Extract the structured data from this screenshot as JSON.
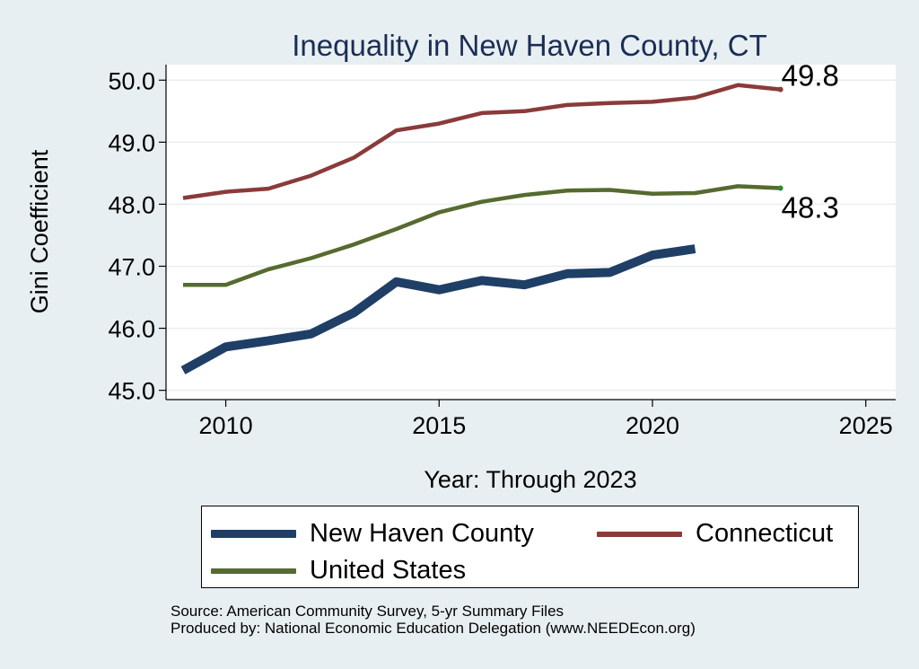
{
  "chart_data": {
    "type": "line",
    "title": "Inequality in New Haven County, CT",
    "xlabel": "Year: Through 2023",
    "ylabel": "Gini Coefficient",
    "xlim": [
      2008.6,
      2025.7
    ],
    "ylim": [
      44.85,
      50.25
    ],
    "x_ticks": [
      2010,
      2015,
      2020,
      2025
    ],
    "y_ticks": [
      45.0,
      46.0,
      47.0,
      48.0,
      49.0,
      50.0
    ],
    "y_tick_labels": [
      "45.0",
      "46.0",
      "47.0",
      "48.0",
      "49.0",
      "50.0"
    ],
    "grid": true,
    "series": [
      {
        "name": "Connecticut",
        "color": "#8b3a3a",
        "x": [
          2009,
          2010,
          2011,
          2012,
          2013,
          2014,
          2015,
          2016,
          2017,
          2018,
          2019,
          2020,
          2021,
          2022,
          2023
        ],
        "values": [
          48.1,
          48.2,
          48.25,
          48.46,
          48.75,
          49.19,
          49.3,
          49.47,
          49.5,
          49.6,
          49.63,
          49.65,
          49.72,
          49.92,
          49.85
        ],
        "end_label": "49.8"
      },
      {
        "name": "United States",
        "color": "#556b2f",
        "x": [
          2009,
          2010,
          2011,
          2012,
          2013,
          2014,
          2015,
          2016,
          2017,
          2018,
          2019,
          2020,
          2021,
          2022,
          2023
        ],
        "values": [
          46.7,
          46.7,
          46.95,
          47.13,
          47.35,
          47.6,
          47.87,
          48.04,
          48.15,
          48.22,
          48.23,
          48.17,
          48.18,
          48.29,
          48.26
        ],
        "end_label": "48.3"
      },
      {
        "name": "New Haven County",
        "color": "#1f3f66",
        "x": [
          2009,
          2010,
          2011,
          2012,
          2013,
          2014,
          2015,
          2016,
          2017,
          2018,
          2019,
          2020,
          2021
        ],
        "values": [
          45.32,
          45.7,
          45.8,
          45.91,
          46.25,
          46.75,
          46.62,
          46.77,
          46.7,
          46.88,
          46.9,
          47.18,
          47.28
        ]
      }
    ]
  },
  "legend": {
    "items": [
      {
        "label": "New Haven County",
        "color": "#1f3f66"
      },
      {
        "label": "Connecticut",
        "color": "#8b3a3a"
      },
      {
        "label": "United States",
        "color": "#556b2f"
      }
    ]
  },
  "footer": {
    "source": "Source: American Community Survey, 5-yr Summary Files",
    "produced_by": "Produced by: National Economic Education Delegation (www.NEEDEcon.org)"
  }
}
